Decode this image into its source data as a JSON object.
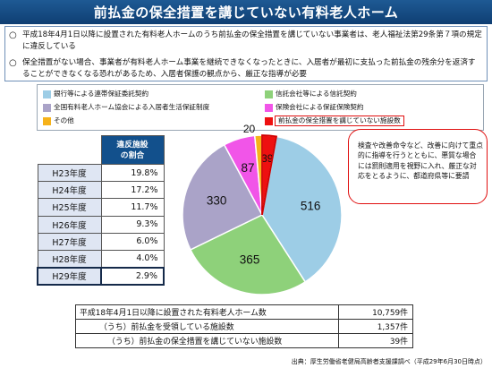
{
  "title": "前払金の保全措置を講じていない有料老人ホーム",
  "bullets": [
    {
      "mark": "○",
      "text": "平成18年4月1日以降に設置された有料老人ホームのうち前払金の保全措置を講じていない事業者は、老人福祉法第29条第７項の規定に違反している"
    },
    {
      "mark": "○",
      "text": "保全措置がない場合、事業者が有料老人ホーム事業を継続できなくなったときに、入居者が最初に支払った前払金の残余分を返済することができなくなる恐れがあるため、入居者保護の観点から、厳正な指導が必要"
    }
  ],
  "colors": {
    "bank": "#9dcde6",
    "trust": "#8ed17a",
    "assoc": "#aaa3c8",
    "insurance": "#f155e8",
    "other": "#f6b21a",
    "none": "#ee1010",
    "header": "#12508c",
    "title_bar": "#1a4f85"
  },
  "rate_table": {
    "header": "違反施設\nの割合",
    "rows": [
      {
        "year": "H23年度",
        "rate": "19.8%"
      },
      {
        "year": "H24年度",
        "rate": "17.2%"
      },
      {
        "year": "H25年度",
        "rate": "11.7%"
      },
      {
        "year": "H26年度",
        "rate": "9.3%"
      },
      {
        "year": "H27年度",
        "rate": "6.0%"
      },
      {
        "year": "H28年度",
        "rate": "4.0%"
      },
      {
        "year": "H29年度",
        "rate": "2.9%"
      }
    ]
  },
  "callout": "検査や改善命令など、改善に向けて重点的に指導を行うとともに、悪質な場合には罰則適用を視野に入れ、厳正な対応をとるように、都道府県等に要請",
  "summary": [
    {
      "label": "平成18年4月1日以降に設置された有料老人ホーム数",
      "value": "10,759件"
    },
    {
      "label": "（うち）前払金を受領している施設数",
      "value": "1,357件"
    },
    {
      "label": "（うち）前払金の保全措置を講じていない施設数",
      "value": "39件"
    }
  ],
  "source": "出典：厚生労働省老健局高齢者支援課調べ（平成29年6月30日時点）",
  "chart_data": {
    "type": "pie",
    "title": "",
    "legend_placement": "top",
    "series": [
      {
        "name": "銀行等による連帯保証委託契約",
        "value": 516,
        "color_key": "bank"
      },
      {
        "name": "信託会社等による信託契約",
        "value": 365,
        "color_key": "trust"
      },
      {
        "name": "全国有料老人ホーム協会による入居者生活保証制度",
        "value": 330,
        "color_key": "assoc"
      },
      {
        "name": "保険会社による保証保険契約",
        "value": 87,
        "color_key": "insurance"
      },
      {
        "name": "その他",
        "value": 20,
        "color_key": "other"
      },
      {
        "name": "前払金の保全措置を講じていない施設数",
        "value": 39,
        "color_key": "none"
      }
    ]
  }
}
